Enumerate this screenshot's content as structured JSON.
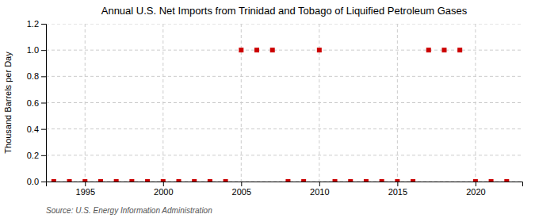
{
  "chart_data": {
    "type": "scatter",
    "title": "Annual U.S. Net Imports from Trinidad and Tobago of Liquified Petroleum Gases",
    "ylabel": "Thousand Barrels per Day",
    "annotation": "Source: U.S. Energy Information Administration",
    "x": [
      1993,
      1994,
      1995,
      1996,
      1997,
      1998,
      1999,
      2000,
      2001,
      2002,
      2003,
      2004,
      2005,
      2006,
      2007,
      2008,
      2009,
      2010,
      2011,
      2012,
      2013,
      2014,
      2015,
      2016,
      2017,
      2018,
      2019,
      2020,
      2021,
      2022
    ],
    "values": [
      0,
      0,
      0,
      0,
      0,
      0,
      0,
      0,
      0,
      0,
      0,
      0,
      1,
      1,
      1,
      0,
      0,
      1,
      0,
      0,
      0,
      0,
      0,
      0,
      1,
      1,
      1,
      0,
      0,
      0
    ],
    "color": "#cc0000",
    "marker": "square",
    "xlim": [
      1992.5,
      2023
    ],
    "xticks": [
      1995,
      2000,
      2005,
      2010,
      2015,
      2020
    ],
    "ylim": [
      0,
      1.2
    ],
    "yticks": [
      {
        "value": 0.0,
        "label": "0.0"
      },
      0.2,
      0.4,
      0.6,
      0.8,
      {
        "value": 1.0,
        "label": "1.0"
      },
      1.2
    ],
    "grid": true
  }
}
